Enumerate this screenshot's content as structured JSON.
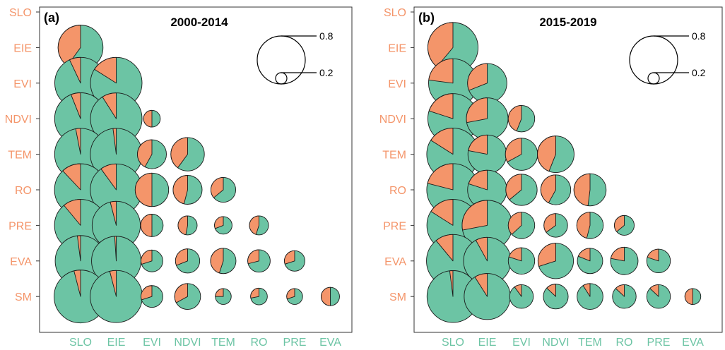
{
  "chart_data": [
    {
      "type": "correlation-pie-matrix",
      "panel_label": "(a)",
      "title": "2000-2014",
      "row_labels": [
        "SLO",
        "EIE",
        "EVI",
        "NDVI",
        "TEM",
        "RO",
        "PRE",
        "EVA",
        "SM"
      ],
      "col_labels": [
        "SLO",
        "EIE",
        "EVI",
        "NDVI",
        "TEM",
        "RO",
        "PRE",
        "EVA"
      ],
      "legend": {
        "large": "0.8",
        "small": "0.2"
      },
      "cells": [
        {
          "row": "EIE",
          "col": "SLO",
          "size": 0.72,
          "value": 0.4
        },
        {
          "row": "EVI",
          "col": "SLO",
          "size": 0.95,
          "value": 0.07
        },
        {
          "row": "EVI",
          "col": "EIE",
          "size": 0.95,
          "value": 0.16
        },
        {
          "row": "NDVI",
          "col": "SLO",
          "size": 0.96,
          "value": 0.06
        },
        {
          "row": "NDVI",
          "col": "EIE",
          "size": 0.95,
          "value": 0.09
        },
        {
          "row": "NDVI",
          "col": "EVI",
          "size": 0.1,
          "value": 0.5
        },
        {
          "row": "TEM",
          "col": "SLO",
          "size": 0.96,
          "value": 0.03
        },
        {
          "row": "TEM",
          "col": "EIE",
          "size": 0.96,
          "value": 0.02
        },
        {
          "row": "TEM",
          "col": "EVI",
          "size": 0.3,
          "value": 0.42
        },
        {
          "row": "TEM",
          "col": "NDVI",
          "size": 0.4,
          "value": 0.4
        },
        {
          "row": "RO",
          "col": "SLO",
          "size": 0.97,
          "value": 0.12
        },
        {
          "row": "RO",
          "col": "EIE",
          "size": 0.96,
          "value": 0.1
        },
        {
          "row": "RO",
          "col": "EVI",
          "size": 0.4,
          "value": 0.5
        },
        {
          "row": "RO",
          "col": "NDVI",
          "size": 0.3,
          "value": 0.46
        },
        {
          "row": "RO",
          "col": "TEM",
          "size": 0.22,
          "value": 0.36
        },
        {
          "row": "PRE",
          "col": "SLO",
          "size": 0.97,
          "value": 0.11
        },
        {
          "row": "PRE",
          "col": "EIE",
          "size": 0.83,
          "value": 0.04
        },
        {
          "row": "PRE",
          "col": "EVI",
          "size": 0.18,
          "value": 0.5
        },
        {
          "row": "PRE",
          "col": "NDVI",
          "size": 0.13,
          "value": 0.47
        },
        {
          "row": "PRE",
          "col": "TEM",
          "size": 0.11,
          "value": 0.31
        },
        {
          "row": "PRE",
          "col": "RO",
          "size": 0.13,
          "value": 0.45
        },
        {
          "row": "EVA",
          "col": "SLO",
          "size": 0.92,
          "value": 0.02
        },
        {
          "row": "EVA",
          "col": "EIE",
          "size": 0.87,
          "value": 0.01
        },
        {
          "row": "EVA",
          "col": "EVI",
          "size": 0.17,
          "value": 0.3
        },
        {
          "row": "EVA",
          "col": "NDVI",
          "size": 0.21,
          "value": 0.31
        },
        {
          "row": "EVA",
          "col": "TEM",
          "size": 0.23,
          "value": 0.45
        },
        {
          "row": "EVA",
          "col": "RO",
          "size": 0.18,
          "value": 0.29
        },
        {
          "row": "EVA",
          "col": "PRE",
          "size": 0.15,
          "value": 0.3
        },
        {
          "row": "SM",
          "col": "SLO",
          "size": 1.0,
          "value": 0.04
        },
        {
          "row": "SM",
          "col": "EIE",
          "size": 0.97,
          "value": 0.04
        },
        {
          "row": "SM",
          "col": "EVI",
          "size": 0.17,
          "value": 0.3
        },
        {
          "row": "SM",
          "col": "NDVI",
          "size": 0.24,
          "value": 0.33
        },
        {
          "row": "SM",
          "col": "TEM",
          "size": 0.09,
          "value": 0.25
        },
        {
          "row": "SM",
          "col": "RO",
          "size": 0.1,
          "value": 0.28
        },
        {
          "row": "SM",
          "col": "PRE",
          "size": 0.09,
          "value": 0.3
        },
        {
          "row": "SM",
          "col": "EVA",
          "size": 0.12,
          "value": 0.5
        }
      ]
    },
    {
      "type": "correlation-pie-matrix",
      "panel_label": "(b)",
      "title": "2015-2019",
      "row_labels": [
        "SLO",
        "EIE",
        "EVI",
        "NDVI",
        "TEM",
        "RO",
        "PRE",
        "EVA",
        "SM"
      ],
      "col_labels": [
        "SLO",
        "EIE",
        "EVI",
        "NDVI",
        "TEM",
        "RO",
        "PRE",
        "EVA"
      ],
      "legend": {
        "large": "0.8",
        "small": "0.2"
      },
      "cells": [
        {
          "row": "EIE",
          "col": "SLO",
          "size": 0.9,
          "value": 0.39
        },
        {
          "row": "EVI",
          "col": "SLO",
          "size": 0.85,
          "value": 0.23
        },
        {
          "row": "EVI",
          "col": "EIE",
          "size": 0.55,
          "value": 0.31
        },
        {
          "row": "NDVI",
          "col": "SLO",
          "size": 0.9,
          "value": 0.2
        },
        {
          "row": "NDVI",
          "col": "EIE",
          "size": 0.62,
          "value": 0.28
        },
        {
          "row": "NDVI",
          "col": "EVI",
          "size": 0.25,
          "value": 0.44
        },
        {
          "row": "TEM",
          "col": "SLO",
          "size": 0.98,
          "value": 0.16
        },
        {
          "row": "TEM",
          "col": "EIE",
          "size": 0.53,
          "value": 0.22
        },
        {
          "row": "TEM",
          "col": "EVI",
          "size": 0.37,
          "value": 0.33
        },
        {
          "row": "TEM",
          "col": "NDVI",
          "size": 0.48,
          "value": 0.44
        },
        {
          "row": "RO",
          "col": "SLO",
          "size": 0.98,
          "value": 0.21
        },
        {
          "row": "RO",
          "col": "EIE",
          "size": 0.55,
          "value": 0.2
        },
        {
          "row": "RO",
          "col": "EVI",
          "size": 0.35,
          "value": 0.36
        },
        {
          "row": "RO",
          "col": "NDVI",
          "size": 0.32,
          "value": 0.42
        },
        {
          "row": "RO",
          "col": "TEM",
          "size": 0.37,
          "value": 0.48
        },
        {
          "row": "PRE",
          "col": "SLO",
          "size": 0.97,
          "value": 0.16
        },
        {
          "row": "PRE",
          "col": "EIE",
          "size": 0.9,
          "value": 0.28
        },
        {
          "row": "PRE",
          "col": "EVI",
          "size": 0.25,
          "value": 0.37
        },
        {
          "row": "PRE",
          "col": "NDVI",
          "size": 0.2,
          "value": 0.35
        },
        {
          "row": "PRE",
          "col": "TEM",
          "size": 0.25,
          "value": 0.46
        },
        {
          "row": "PRE",
          "col": "RO",
          "size": 0.14,
          "value": 0.36
        },
        {
          "row": "EVA",
          "col": "SLO",
          "size": 1.0,
          "value": 0.11
        },
        {
          "row": "EVA",
          "col": "EIE",
          "size": 0.8,
          "value": 0.08
        },
        {
          "row": "EVA",
          "col": "EVI",
          "size": 0.25,
          "value": 0.2
        },
        {
          "row": "EVA",
          "col": "NDVI",
          "size": 0.45,
          "value": 0.3
        },
        {
          "row": "EVA",
          "col": "TEM",
          "size": 0.23,
          "value": 0.19
        },
        {
          "row": "EVA",
          "col": "RO",
          "size": 0.27,
          "value": 0.22
        },
        {
          "row": "EVA",
          "col": "PRE",
          "size": 0.2,
          "value": 0.2
        },
        {
          "row": "SM",
          "col": "SLO",
          "size": 0.96,
          "value": 0.02
        },
        {
          "row": "SM",
          "col": "EIE",
          "size": 0.76,
          "value": 0.09
        },
        {
          "row": "SM",
          "col": "EVI",
          "size": 0.2,
          "value": 0.1
        },
        {
          "row": "SM",
          "col": "NDVI",
          "size": 0.22,
          "value": 0.13
        },
        {
          "row": "SM",
          "col": "TEM",
          "size": 0.24,
          "value": 0.09
        },
        {
          "row": "SM",
          "col": "RO",
          "size": 0.2,
          "value": 0.13
        },
        {
          "row": "SM",
          "col": "PRE",
          "size": 0.2,
          "value": 0.13
        },
        {
          "row": "SM",
          "col": "EVA",
          "size": 0.09,
          "value": 0.5
        }
      ]
    }
  ],
  "colors": {
    "pie_green": "#6cc4a4",
    "pie_orange": "#f4956a",
    "row_label": "#f4956a",
    "col_label": "#6cc4a4",
    "outline": "#1a1a1a"
  }
}
